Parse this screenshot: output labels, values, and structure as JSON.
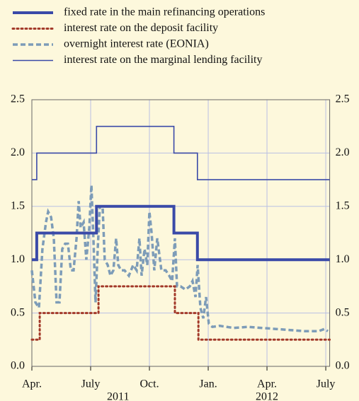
{
  "chart_data": {
    "type": "line",
    "xlim": [
      0,
      15.2
    ],
    "xticks": [
      {
        "value": 0,
        "label": "Apr."
      },
      {
        "value": 3,
        "label": "July"
      },
      {
        "value": 6,
        "label": "Oct."
      },
      {
        "value": 9,
        "label": "Jan."
      },
      {
        "value": 12,
        "label": "Apr."
      },
      {
        "value": 15,
        "label": "July"
      }
    ],
    "year_labels": [
      {
        "value": 4.4,
        "label": "2011"
      },
      {
        "value": 12,
        "label": "2012"
      }
    ],
    "ylim": [
      0,
      2.5
    ],
    "yticks": [
      {
        "value": 0,
        "label": "0.0"
      },
      0.5,
      {
        "value": 1,
        "label": "1.0"
      },
      1.5,
      {
        "value": 2,
        "label": "2.0"
      },
      2.5
    ],
    "grid": true,
    "series": [
      {
        "name": "fixed rate in the main refinancing operations",
        "color": "#3a4aa8",
        "style": "solid",
        "width": 4,
        "x": [
          0,
          0.25,
          0.25,
          3.3,
          3.3,
          7.25,
          7.25,
          8.45,
          8.45,
          15.2
        ],
        "values": [
          1,
          1,
          1.25,
          1.25,
          1.5,
          1.5,
          1.25,
          1.25,
          1,
          1
        ]
      },
      {
        "name": "interest rate on the deposit facility",
        "color": "#a33a2a",
        "style": "dotted",
        "width": 3,
        "x": [
          0,
          0.4,
          0.4,
          3.4,
          3.4,
          7.3,
          7.3,
          8.5,
          8.5,
          15.2
        ],
        "values": [
          0.25,
          0.25,
          0.5,
          0.5,
          0.75,
          0.75,
          0.5,
          0.5,
          0.25,
          0.25
        ]
      },
      {
        "name": "overnight interest rate (EONIA)",
        "color": "#7d9cb8",
        "style": "dashed",
        "width": 3.5,
        "x": [
          0,
          0.18,
          0.36,
          0.54,
          0.72,
          0.83,
          0.98,
          1.12,
          1.26,
          1.41,
          1.55,
          1.7,
          1.84,
          1.99,
          2.13,
          2.28,
          2.39,
          2.49,
          2.64,
          2.78,
          2.93,
          3.04,
          3.14,
          3.25,
          3.36,
          3.47,
          3.61,
          3.72,
          3.87,
          4.01,
          4.16,
          4.3,
          4.41,
          4.55,
          4.73,
          4.95,
          5.17,
          5.35,
          5.49,
          5.6,
          5.75,
          5.89,
          6,
          6.11,
          6.25,
          6.4,
          6.61,
          6.83,
          7.01,
          7.16,
          7.3,
          7.41,
          7.59,
          7.84,
          8.06,
          8.2,
          8.35,
          8.46,
          8.6,
          8.75,
          8.89,
          9.03,
          9.21,
          9.58,
          10.3,
          11.02,
          11.75,
          12.47,
          13.19,
          13.91,
          14.64,
          14.93,
          15.11
        ],
        "values": [
          0.9,
          0.6,
          0.55,
          1.1,
          1.35,
          1.45,
          1.4,
          1.2,
          0.6,
          0.6,
          1.1,
          1.15,
          1.15,
          0.9,
          0.9,
          1.2,
          1.55,
          1.3,
          1.35,
          1.0,
          1.3,
          1.7,
          1.2,
          0.6,
          1.1,
          1.5,
          1.5,
          1.0,
          0.95,
          0.85,
          0.9,
          1.2,
          0.95,
          0.9,
          0.9,
          0.85,
          0.95,
          0.9,
          1.2,
          0.85,
          1.1,
          0.95,
          1.45,
          1.25,
          0.9,
          1.2,
          0.9,
          0.9,
          0.85,
          0.8,
          1.2,
          0.75,
          0.75,
          0.72,
          0.75,
          0.8,
          0.65,
          0.95,
          0.55,
          0.45,
          0.65,
          0.4,
          0.37,
          0.38,
          0.36,
          0.37,
          0.36,
          0.35,
          0.34,
          0.33,
          0.33,
          0.35,
          0.33
        ]
      },
      {
        "name": "interest rate on the marginal lending facility",
        "color": "#3a4aa8",
        "style": "solid",
        "width": 1.6,
        "x": [
          0,
          0.25,
          0.25,
          3.3,
          3.3,
          7.25,
          7.25,
          8.45,
          8.45,
          15.2
        ],
        "values": [
          1.75,
          1.75,
          2,
          2,
          2.25,
          2.25,
          2,
          2,
          1.75,
          1.75
        ]
      }
    ]
  }
}
